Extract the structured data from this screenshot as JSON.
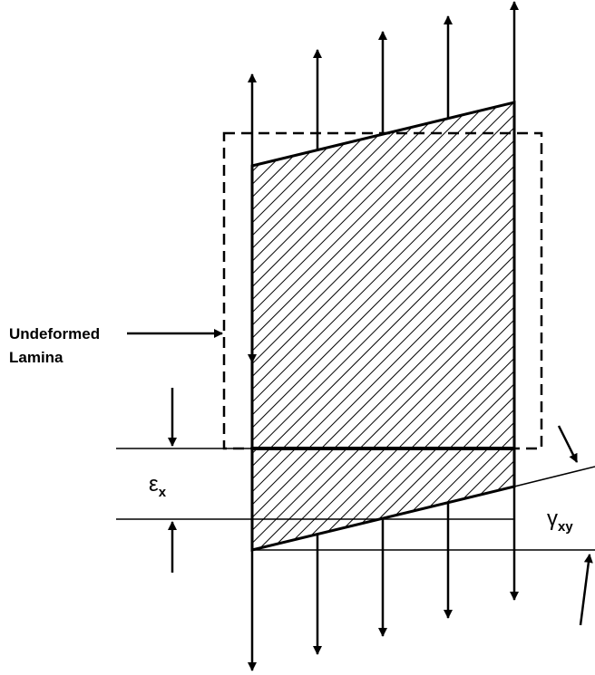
{
  "labels": {
    "undeformed": [
      "Undeformed",
      "Lamina"
    ],
    "strain_x": {
      "symbol": "ε",
      "subscript": "x"
    },
    "shear": {
      "symbol": "γ",
      "subscript": "xy"
    }
  }
}
